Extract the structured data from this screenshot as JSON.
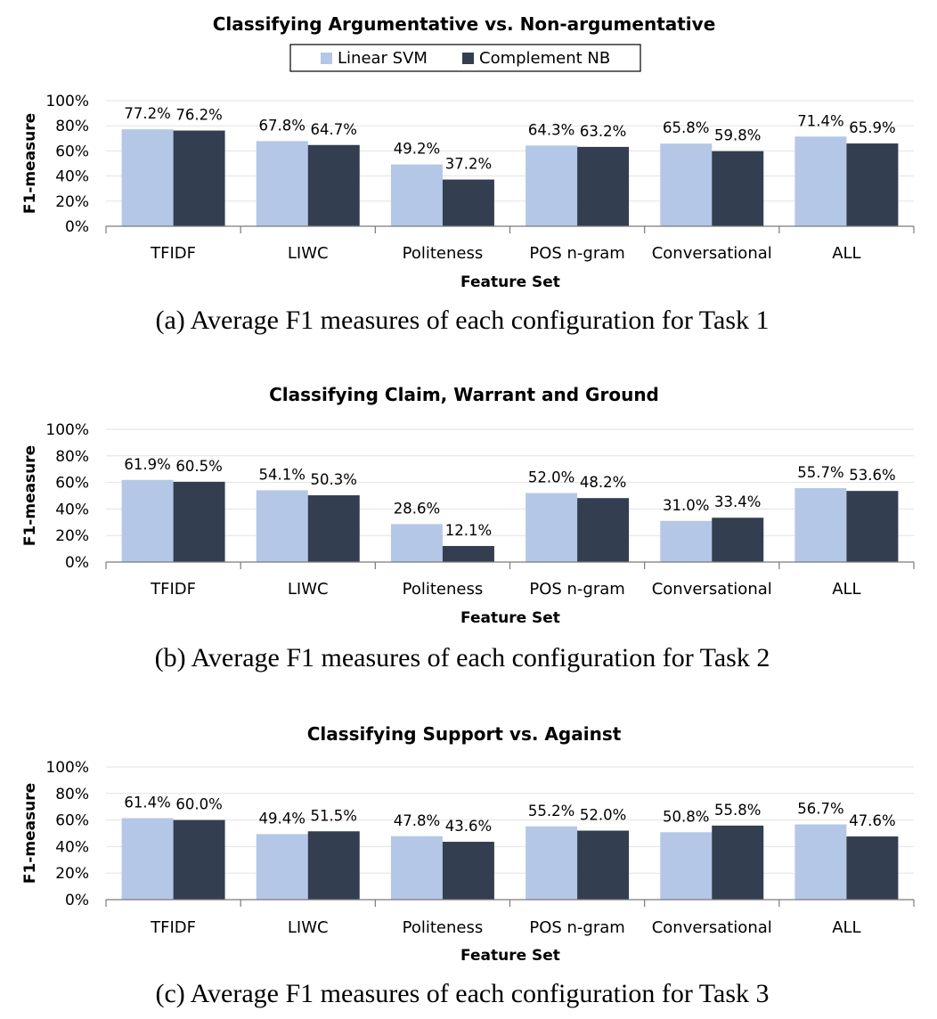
{
  "colors": {
    "linear_svm": "#b4c7e7",
    "complement_nb": "#333f50"
  },
  "legend": [
    "Linear SVM",
    "Complement NB"
  ],
  "chart_data": [
    {
      "type": "bar",
      "title": "Classifying Argumentative vs. Non-argumentative",
      "xlabel": "Feature Set",
      "ylabel": "F1-measure",
      "ylim": [
        0,
        100
      ],
      "yticks": [
        "0%",
        "20%",
        "40%",
        "60%",
        "80%",
        "100%"
      ],
      "categories": [
        "TFIDF",
        "LIWC",
        "Politeness",
        "POS n-gram",
        "Conversational",
        "ALL"
      ],
      "series": [
        {
          "name": "Linear SVM",
          "values": [
            77.2,
            67.8,
            49.2,
            64.3,
            65.8,
            71.4
          ],
          "labels": [
            "77.2%",
            "67.8%",
            "49.2%",
            "64.3%",
            "65.8%",
            "71.4%"
          ]
        },
        {
          "name": "Complement NB",
          "values": [
            76.2,
            64.7,
            37.2,
            63.2,
            59.8,
            65.9
          ],
          "labels": [
            "76.2%",
            "64.7%",
            "37.2%",
            "63.2%",
            "59.8%",
            "65.9%"
          ]
        }
      ],
      "legend": "top-center",
      "caption": "(a) Average F1 measures of each configuration for Task 1"
    },
    {
      "type": "bar",
      "title": "Classifying Claim, Warrant and Ground",
      "xlabel": "Feature Set",
      "ylabel": "F1-measure",
      "ylim": [
        0,
        100
      ],
      "yticks": [
        "0%",
        "20%",
        "40%",
        "60%",
        "80%",
        "100%"
      ],
      "categories": [
        "TFIDF",
        "LIWC",
        "Politeness",
        "POS n-gram",
        "Conversational",
        "ALL"
      ],
      "series": [
        {
          "name": "Linear SVM",
          "values": [
            61.9,
            54.1,
            28.6,
            52.0,
            31.0,
            55.7
          ],
          "labels": [
            "61.9%",
            "54.1%",
            "28.6%",
            "52.0%",
            "31.0%",
            "55.7%"
          ]
        },
        {
          "name": "Complement NB",
          "values": [
            60.5,
            50.3,
            12.1,
            48.2,
            33.4,
            53.6
          ],
          "labels": [
            "60.5%",
            "50.3%",
            "12.1%",
            "48.2%",
            "33.4%",
            "53.6%"
          ]
        }
      ],
      "caption": "(b) Average F1 measures of each configuration for Task 2"
    },
    {
      "type": "bar",
      "title": "Classifying Support vs. Against",
      "xlabel": "Feature Set",
      "ylabel": "F1-measure",
      "ylim": [
        0,
        100
      ],
      "yticks": [
        "0%",
        "20%",
        "40%",
        "60%",
        "80%",
        "100%"
      ],
      "categories": [
        "TFIDF",
        "LIWC",
        "Politeness",
        "POS n-gram",
        "Conversational",
        "ALL"
      ],
      "series": [
        {
          "name": "Linear SVM",
          "values": [
            61.4,
            49.4,
            47.8,
            55.2,
            50.8,
            56.7
          ],
          "labels": [
            "61.4%",
            "49.4%",
            "47.8%",
            "55.2%",
            "50.8%",
            "56.7%"
          ]
        },
        {
          "name": "Complement NB",
          "values": [
            60.0,
            51.5,
            43.6,
            52.0,
            55.8,
            47.6
          ],
          "labels": [
            "60.0%",
            "51.5%",
            "43.6%",
            "52.0%",
            "55.8%",
            "47.6%"
          ]
        }
      ],
      "caption": "(c) Average F1 measures of each configuration for Task 3"
    }
  ]
}
